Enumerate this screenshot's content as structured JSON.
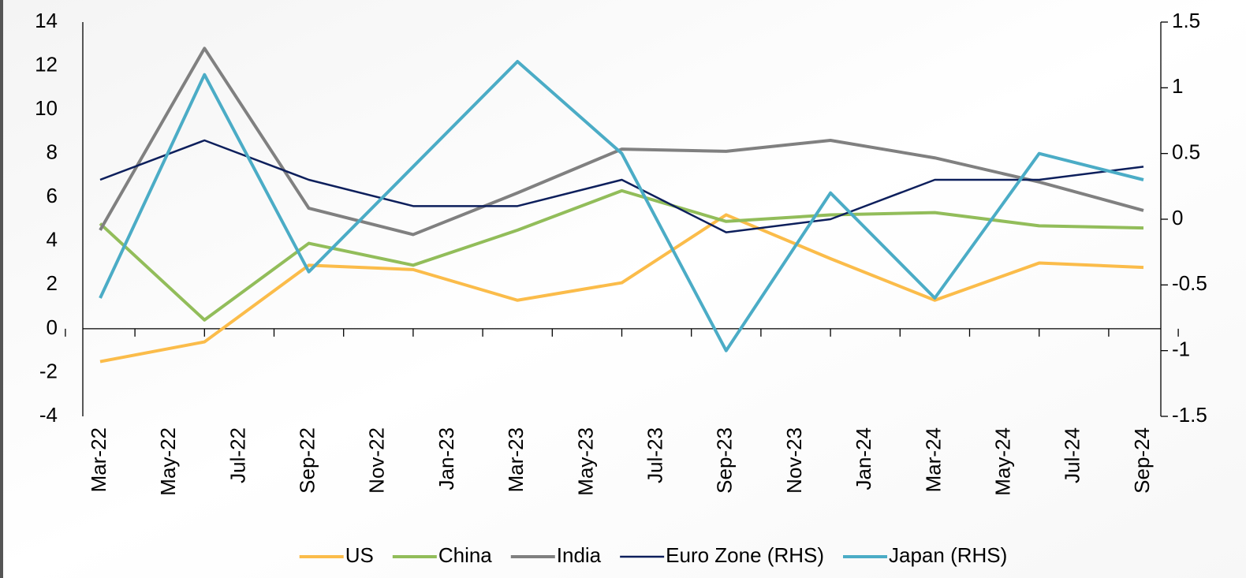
{
  "chart_data": {
    "type": "line",
    "x": [
      "2022-03",
      "2022-06",
      "2022-09",
      "2022-12",
      "2023-03",
      "2023-06",
      "2023-09",
      "2023-12",
      "2024-03",
      "2024-06",
      "2024-09"
    ],
    "xlim": [
      "2022-03",
      "2024-09"
    ],
    "xticks": [
      {
        "value": "2022-03",
        "label": "Mar-22"
      },
      {
        "value": "2022-05",
        "label": "May-22"
      },
      {
        "value": "2022-07",
        "label": "Jul-22"
      },
      {
        "value": "2022-09",
        "label": "Sep-22"
      },
      {
        "value": "2022-11",
        "label": "Nov-22"
      },
      {
        "value": "2023-01",
        "label": "Jan-23"
      },
      {
        "value": "2023-03",
        "label": "Mar-23"
      },
      {
        "value": "2023-05",
        "label": "May-23"
      },
      {
        "value": "2023-07",
        "label": "Jul-23"
      },
      {
        "value": "2023-09",
        "label": "Sep-23"
      },
      {
        "value": "2023-11",
        "label": "Nov-23"
      },
      {
        "value": "2024-01",
        "label": "Jan-24"
      },
      {
        "value": "2024-03",
        "label": "Mar-24"
      },
      {
        "value": "2024-05",
        "label": "May-24"
      },
      {
        "value": "2024-07",
        "label": "Jul-24"
      },
      {
        "value": "2024-09",
        "label": "Sep-24"
      }
    ],
    "ylim": [
      -4,
      14
    ],
    "yticks": [
      -4,
      -2,
      0,
      2,
      4,
      6,
      8,
      10,
      12,
      14
    ],
    "y2lim": [
      -1.5,
      1.5
    ],
    "y2ticks": [
      -1.5,
      -1,
      -0.5,
      0,
      0.5,
      1,
      1.5
    ],
    "legend": "bottom",
    "series": [
      {
        "name": "US",
        "color": "#fbbc4a",
        "values": [
          -1.5,
          -0.6,
          2.9,
          2.7,
          1.3,
          2.1,
          5.2,
          3.2,
          1.3,
          3.0,
          2.8
        ]
      },
      {
        "name": "China",
        "color": "#92bd5a",
        "values": [
          4.8,
          0.4,
          3.9,
          2.9,
          4.5,
          6.3,
          4.9,
          5.2,
          5.3,
          4.7,
          4.6
        ]
      },
      {
        "name": "India",
        "color": "#808080",
        "values": [
          4.5,
          12.8,
          5.5,
          4.3,
          6.2,
          8.2,
          8.1,
          8.6,
          7.8,
          6.7,
          5.4
        ]
      },
      {
        "name": "Euro Zone (RHS)",
        "color": "#0d1f5c",
        "axis": "y2",
        "values": [
          0.3,
          0.6,
          0.3,
          0.1,
          0.1,
          0.3,
          -0.1,
          0.0,
          0.3,
          0.3,
          0.4
        ]
      },
      {
        "name": "Japan (RHS)",
        "color": "#4bacc6",
        "axis": "y2",
        "values": [
          -0.6,
          1.1,
          -0.4,
          0.4,
          1.2,
          0.5,
          -1.0,
          0.2,
          -0.6,
          0.5,
          0.3
        ]
      }
    ]
  }
}
